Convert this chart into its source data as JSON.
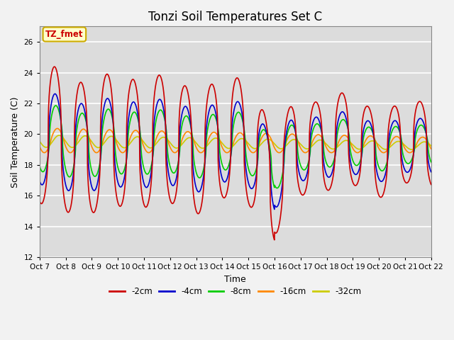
{
  "title": "Tonzi Soil Temperatures Set C",
  "xlabel": "Time",
  "ylabel": "Soil Temperature (C)",
  "ylim": [
    12,
    27
  ],
  "yticks": [
    12,
    14,
    16,
    18,
    20,
    22,
    24,
    26
  ],
  "tick_labels": [
    "Oct 7",
    "Oct 8",
    "Oct 9",
    "Oct 10",
    "Oct 11",
    "Oct 12",
    "Oct 13",
    "Oct 14",
    "Oct 15",
    "Oct 16",
    "Oct 17",
    "Oct 18",
    "Oct 19",
    "Oct 20",
    "Oct 21",
    "Oct 22"
  ],
  "series_colors": [
    "#cc0000",
    "#0000cc",
    "#00cc00",
    "#ff8800",
    "#cccc00"
  ],
  "series_labels": [
    "-2cm",
    "-4cm",
    "-8cm",
    "-16cm",
    "-32cm"
  ],
  "annotation_text": "TZ_fmet",
  "annotation_bg": "#ffffcc",
  "annotation_border": "#ccaa00",
  "plot_bg": "#dcdcdc",
  "fig_bg": "#f2f2f2",
  "title_fontsize": 12,
  "tick_fontsize": 7.5,
  "ylabel_fontsize": 9,
  "xlabel_fontsize": 9
}
